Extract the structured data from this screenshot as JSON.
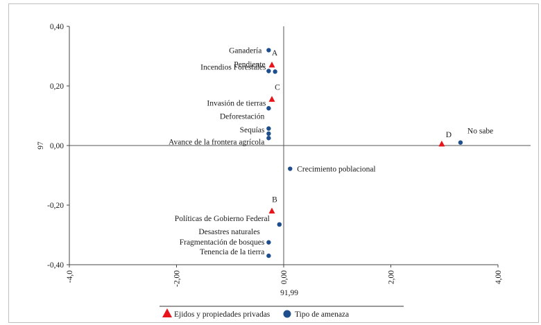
{
  "chart_data": {
    "type": "scatter",
    "xlabel": "91,99",
    "ylabel": "97",
    "xlim": [
      -4.0,
      4.0
    ],
    "ylim": [
      -0.4,
      0.4
    ],
    "x_ticks": [
      "-4,0",
      "-2,00",
      "0,00",
      "2,00",
      "4,00"
    ],
    "x_tick_values": [
      -4,
      -2,
      0,
      2,
      4
    ],
    "y_ticks": [
      "0,40",
      "0,20",
      "0,00",
      "-0,20",
      "-0,40"
    ],
    "y_tick_values": [
      0.4,
      0.2,
      0,
      -0.2,
      -0.4
    ],
    "grid": false,
    "legend_position": "bottom",
    "series": [
      {
        "name": "Ejidos y propiedades privadas",
        "marker": "triangle",
        "color": "#e8141c",
        "points": [
          {
            "label": "A",
            "x": -0.22,
            "y": 0.27
          },
          {
            "label": "C",
            "x": -0.22,
            "y": 0.155
          },
          {
            "label": "D",
            "x": 2.95,
            "y": 0.005
          },
          {
            "label": "B",
            "x": -0.22,
            "y": -0.22
          }
        ]
      },
      {
        "name": "Tipo de amenaza",
        "marker": "circle",
        "color": "#1f4e8c",
        "points": [
          {
            "label": "Ganadería",
            "x": -0.28,
            "y": 0.32
          },
          {
            "label": "Incendios Forestales",
            "x": -0.28,
            "y": 0.25
          },
          {
            "label": "Pendiente",
            "x": -0.16,
            "y": 0.248
          },
          {
            "label": "Invasión de tierras",
            "x": -0.28,
            "y": 0.125
          },
          {
            "label": "Deforestación",
            "x": -0.28,
            "y": 0.057
          },
          {
            "label": "Sequías",
            "x": -0.28,
            "y": 0.04
          },
          {
            "label": "Avance de la frontera agrícola",
            "x": -0.28,
            "y": 0.025
          },
          {
            "label": "No sabe",
            "x": 3.3,
            "y": 0.01
          },
          {
            "label": "Crecimiento poblacional",
            "x": 0.12,
            "y": -0.078
          },
          {
            "label": "Políticas de Gobierno Federal",
            "x": -0.08,
            "y": -0.265
          },
          {
            "label": "Desastres naturales",
            "x": -0.08,
            "y": -0.265
          },
          {
            "label": "Fragmentación de bosques",
            "x": -0.28,
            "y": -0.325
          },
          {
            "label": "Tenencia de la tierra",
            "x": -0.28,
            "y": -0.37
          }
        ]
      }
    ]
  },
  "legend": {
    "items": [
      {
        "label": "Ejidos y propiedades privadas",
        "color": "#e8141c",
        "marker": "triangle"
      },
      {
        "label": "Tipo de amenaza",
        "color": "#1f4e8c",
        "marker": "circle"
      }
    ]
  }
}
